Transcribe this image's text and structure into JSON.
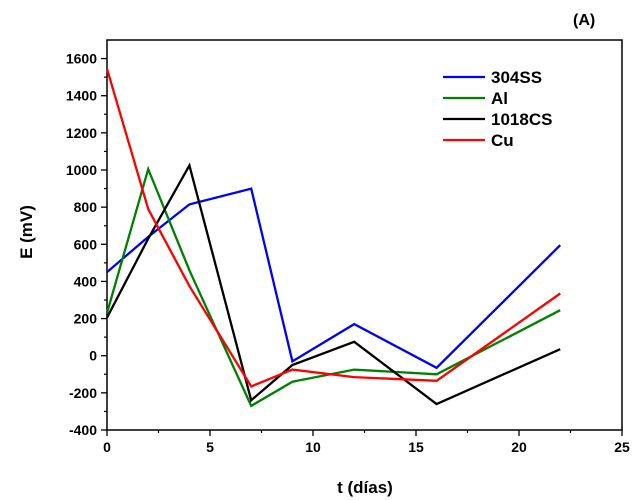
{
  "chart_data": {
    "type": "line",
    "panel_label": "(A)",
    "title": "",
    "xlabel": "t (días)",
    "ylabel": "E (mV)",
    "xlim": [
      0,
      25
    ],
    "ylim": [
      -400,
      1700
    ],
    "xticks": [
      0,
      5,
      10,
      15,
      20,
      25
    ],
    "yticks": [
      -400,
      -200,
      0,
      200,
      400,
      600,
      800,
      1000,
      1200,
      1400,
      1600
    ],
    "grid": false,
    "legend_position": "top-right",
    "series": [
      {
        "name": "304SS",
        "color": "#0000ff",
        "x": [
          0,
          2,
          4,
          7,
          9,
          12,
          16,
          22
        ],
        "y": [
          450,
          640,
          815,
          900,
          -30,
          170,
          -65,
          595
        ]
      },
      {
        "name": "Al",
        "color": "#008000",
        "x": [
          0,
          2,
          4,
          7,
          9,
          12,
          16,
          22
        ],
        "y": [
          230,
          1005,
          460,
          -270,
          -140,
          -75,
          -100,
          245
        ]
      },
      {
        "name": "1018CS",
        "color": "#000000",
        "x": [
          0,
          2,
          4,
          7,
          9,
          12,
          16,
          22
        ],
        "y": [
          205,
          630,
          1025,
          -240,
          -50,
          75,
          -260,
          35
        ]
      },
      {
        "name": "Cu",
        "color": "#ff0000",
        "x": [
          0,
          2,
          4,
          7,
          9,
          12,
          16,
          22
        ],
        "y": [
          1545,
          790,
          375,
          -165,
          -75,
          -115,
          -135,
          335
        ]
      }
    ]
  }
}
